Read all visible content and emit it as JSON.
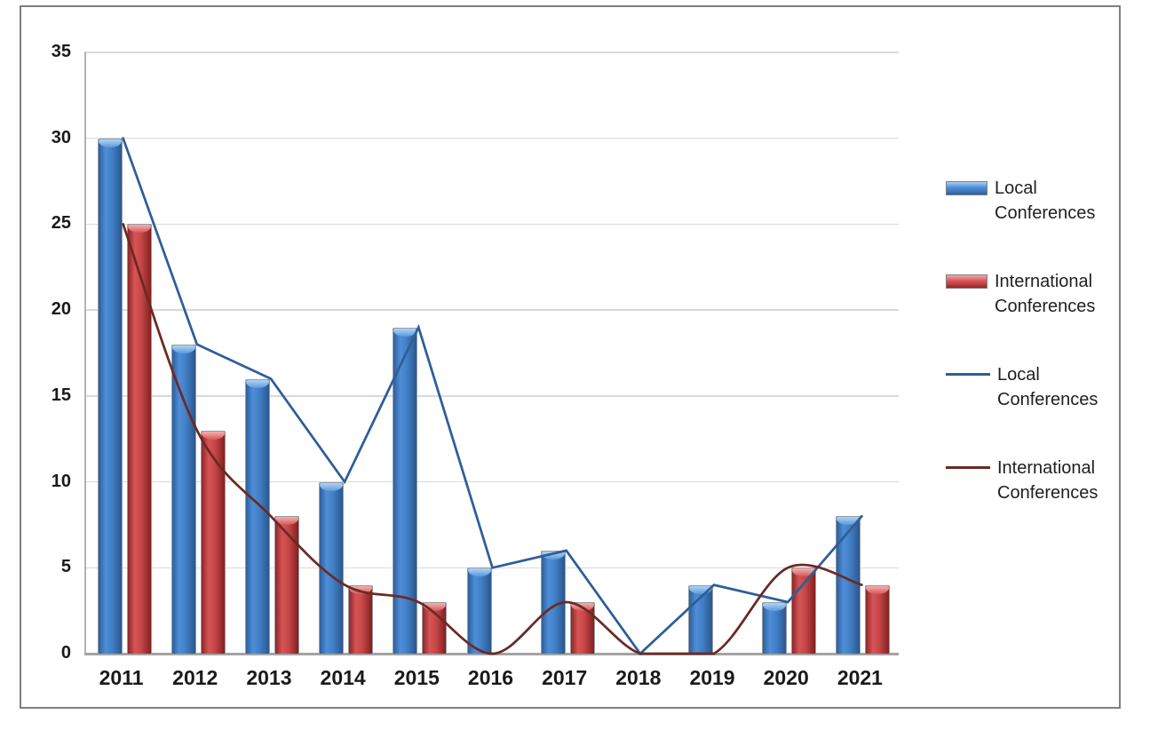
{
  "chart_data": {
    "type": "combo-bar-line",
    "title": "",
    "xlabel": "",
    "ylabel": "",
    "categories": [
      "2011",
      "2012",
      "2013",
      "2014",
      "2015",
      "2016",
      "2017",
      "2018",
      "2019",
      "2020",
      "2021"
    ],
    "series": [
      {
        "name": "Local Conferences",
        "chart_type": "bar",
        "values": [
          30,
          18,
          16,
          10,
          19,
          5,
          6,
          0,
          4,
          3,
          8
        ],
        "color": "#4180C6",
        "fill_edge_left": "#2E5F9A",
        "fill_highlight": "#4E8ED8",
        "fill_mid": "#4180C6",
        "fill_edge_right": "#2A578E",
        "cap_light": "#A9CFF2",
        "cap_dark": "#5D9CDE"
      },
      {
        "name": "International Conferences",
        "chart_type": "bar",
        "values": [
          25,
          13,
          8,
          4,
          3,
          0,
          3,
          0,
          0,
          5,
          4
        ],
        "color": "#C64648",
        "fill_edge_left": "#8C2627",
        "fill_highlight": "#D65456",
        "fill_mid": "#C64648",
        "fill_edge_right": "#82201F",
        "cap_light": "#F0A9A9",
        "cap_dark": "#D85B5B"
      },
      {
        "name": "Local Conferences",
        "chart_type": "line",
        "values": [
          30,
          18,
          16,
          10,
          19,
          5,
          6,
          0,
          4,
          3,
          8
        ],
        "color": "#2F5E99",
        "smooth": false
      },
      {
        "name": "International Conferences",
        "chart_type": "line",
        "values": [
          25,
          13,
          8,
          4,
          3,
          0,
          3,
          0,
          0,
          5,
          4
        ],
        "color": "#6B2A23",
        "smooth": true
      }
    ],
    "ylim": [
      0,
      35
    ],
    "yticks": [
      0,
      5,
      10,
      15,
      20,
      25,
      30,
      35
    ],
    "grid": true,
    "legend_position": "right"
  },
  "palette": {
    "frame_border": "#7F7F7F",
    "gridline": "#DADADA",
    "axis_line": "#B3B3B3",
    "baseline": "#A3A3A3",
    "tick_label": "#1A1A1A",
    "legend_text": "#1F1F1F",
    "background": "#FFFFFF"
  }
}
